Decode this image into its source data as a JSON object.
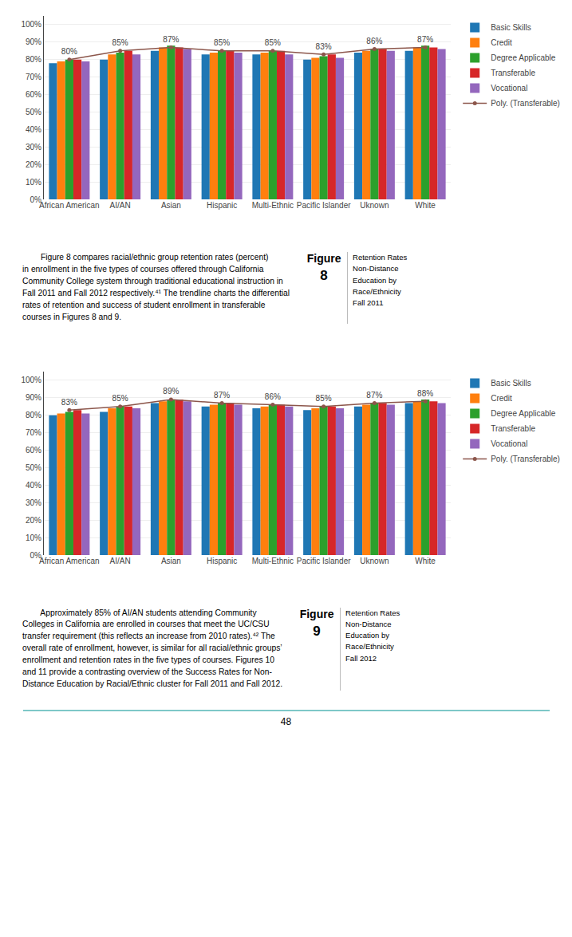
{
  "chart_data": [
    {
      "type": "bar",
      "categories": [
        "African American",
        "AI/AN",
        "Asian",
        "Hispanic",
        "Multi-Ethnic",
        "Pacific Islander",
        "Uknown",
        "White"
      ],
      "series": [
        {
          "name": "Basic Skills",
          "values": [
            78,
            80,
            85,
            83,
            83,
            80,
            84,
            85
          ]
        },
        {
          "name": "Credit",
          "values": [
            79,
            83,
            87,
            84,
            84,
            81,
            85,
            87
          ]
        },
        {
          "name": "Degree Applicable",
          "values": [
            80,
            84,
            88,
            85,
            85,
            82,
            86,
            88
          ]
        },
        {
          "name": "Transferable",
          "values": [
            80,
            85,
            87,
            85,
            85,
            83,
            86,
            87
          ]
        },
        {
          "name": "Vocational",
          "values": [
            79,
            83,
            86,
            84,
            83,
            81,
            85,
            86
          ]
        },
        {
          "name": "Poly. (Transferable)",
          "type": "line",
          "marker": "circle",
          "line_style": "solid",
          "data_labels": true,
          "values": [
            80,
            85,
            87,
            85,
            85,
            83,
            86,
            87
          ],
          "value_labels": [
            "80%",
            "85%",
            "87%",
            "85%",
            "85%",
            "83%",
            "86%",
            "87%"
          ]
        }
      ],
      "ylim": [
        0,
        105
      ],
      "yticks": [
        {
          "value": 0,
          "label": "0%"
        },
        {
          "value": 10,
          "label": "10%"
        },
        {
          "value": 20,
          "label": "20%"
        },
        {
          "value": 30,
          "label": "30%"
        },
        {
          "value": 40,
          "label": "40%"
        },
        {
          "value": 50,
          "label": "50%"
        },
        {
          "value": 60,
          "label": "60%"
        },
        {
          "value": 70,
          "label": "70%"
        },
        {
          "value": 80,
          "label": "80%"
        },
        {
          "value": 90,
          "label": "90%"
        },
        {
          "value": 100,
          "label": "100%"
        }
      ],
      "grid": true,
      "legend": "right",
      "annotations": [
        "        Figure 8 compares racial/ethnic group retention rates (percent)\nin enrollment in the five types of courses offered through California\nCommunity College system through traditional educational instruction in\nFall 2011 and Fall 2012 respectively.⁴¹ The trendline charts the differential\nrates of retention and success of student enrollment in transferable\ncourses in Figures 8 and 9.",
        "Figure",
        "8",
        "Retention Rates\nNon-Distance\nEducation by\nRace/Ethnicity\nFall 2011"
      ]
    },
    {
      "type": "bar",
      "categories": [
        "African American",
        "AI/AN",
        "Asian",
        "Hispanic",
        "Multi-Ethnic",
        "Pacific Islander",
        "Uknown",
        "White"
      ],
      "series": [
        {
          "name": "Basic Skills",
          "values": [
            80,
            82,
            87,
            85,
            84,
            83,
            85,
            87
          ]
        },
        {
          "name": "Credit",
          "values": [
            81,
            84,
            88,
            86,
            85,
            84,
            86,
            88
          ]
        },
        {
          "name": "Degree Applicable",
          "values": [
            82,
            85,
            89,
            87,
            86,
            85,
            87,
            89
          ]
        },
        {
          "name": "Transferable",
          "values": [
            83,
            85,
            89,
            87,
            86,
            85,
            87,
            88
          ]
        },
        {
          "name": "Vocational",
          "values": [
            81,
            84,
            88,
            86,
            85,
            84,
            86,
            87
          ]
        },
        {
          "name": "Poly. (Transferable)",
          "type": "line",
          "marker": "circle",
          "line_style": "solid",
          "data_labels": true,
          "values": [
            83,
            85,
            89,
            87,
            86,
            85,
            87,
            88
          ],
          "value_labels": [
            "83%",
            "85%",
            "89%",
            "87%",
            "86%",
            "85%",
            "87%",
            "88%"
          ]
        }
      ],
      "ylim": [
        0,
        105
      ],
      "yticks": [
        {
          "value": 0,
          "label": "0%"
        },
        {
          "value": 10,
          "label": "10%"
        },
        {
          "value": 20,
          "label": "20%"
        },
        {
          "value": 30,
          "label": "30%"
        },
        {
          "value": 40,
          "label": "40%"
        },
        {
          "value": 50,
          "label": "50%"
        },
        {
          "value": 60,
          "label": "60%"
        },
        {
          "value": 70,
          "label": "70%"
        },
        {
          "value": 80,
          "label": "80%"
        },
        {
          "value": 90,
          "label": "90%"
        },
        {
          "value": 100,
          "label": "100%"
        }
      ],
      "grid": true,
      "legend": "right",
      "annotations": [
        "        Approximately 85% of AI/AN students attending Community\nColleges in California are enrolled in courses that meet the UC/CSU\ntransfer requirement (this reflects an increase from 2010 rates).⁴² The\noverall rate of enrollment, however, is similar for all racial/ethnic groups’\nenrollment and retention rates in the five types of courses. Figures 10\nand 11 provide a contrasting overview of the Success Rates for Non-\nDistance Education by Racial/Ethnic cluster for Fall 2011 and Fall 2012.",
        "Figure",
        "9",
        "Retention Rates\nNon-Distance\nEducation by\nRace/Ethnicity\nFall 2012",
        "48"
      ]
    }
  ]
}
